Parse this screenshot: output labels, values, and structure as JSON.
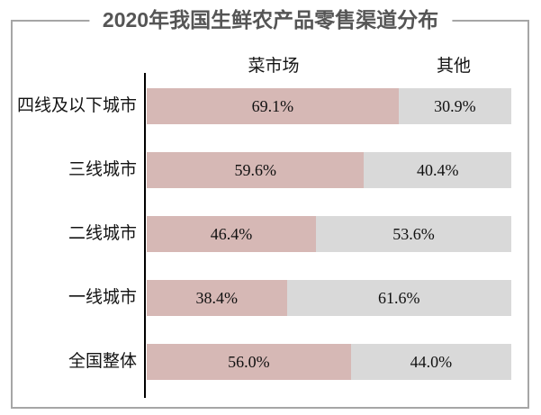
{
  "title": "2020年我国生鲜农产品零售渠道分布",
  "colors": {
    "wet_market_fill": "#d6b8b5",
    "other_fill": "#d9d9d9",
    "axis_line": "#000000",
    "frame_border": "#a6a6a6",
    "title_text": "#555555",
    "label_text": "#141414"
  },
  "chart_data": {
    "type": "bar",
    "orientation": "horizontal-stacked",
    "title": "2020年我国生鲜农产品零售渠道分布",
    "categories": [
      "四线及以下城市",
      "三线城市",
      "二线城市",
      "一线城市",
      "全国整体"
    ],
    "series": [
      {
        "name": "菜市场",
        "color": "#d6b8b5",
        "values": [
          69.1,
          59.6,
          46.4,
          38.4,
          56.0
        ]
      },
      {
        "name": "其他",
        "color": "#d9d9d9",
        "values": [
          30.9,
          40.4,
          53.6,
          61.6,
          44.0
        ]
      }
    ],
    "value_labels": [
      [
        "69.1%",
        "30.9%"
      ],
      [
        "59.6%",
        "40.4%"
      ],
      [
        "46.4%",
        "53.6%"
      ],
      [
        "38.4%",
        "61.6%"
      ],
      [
        "56.0%",
        "44.0%"
      ]
    ],
    "xlim": [
      0,
      100
    ],
    "unit": "%",
    "legend_position": "top",
    "grid": false
  }
}
